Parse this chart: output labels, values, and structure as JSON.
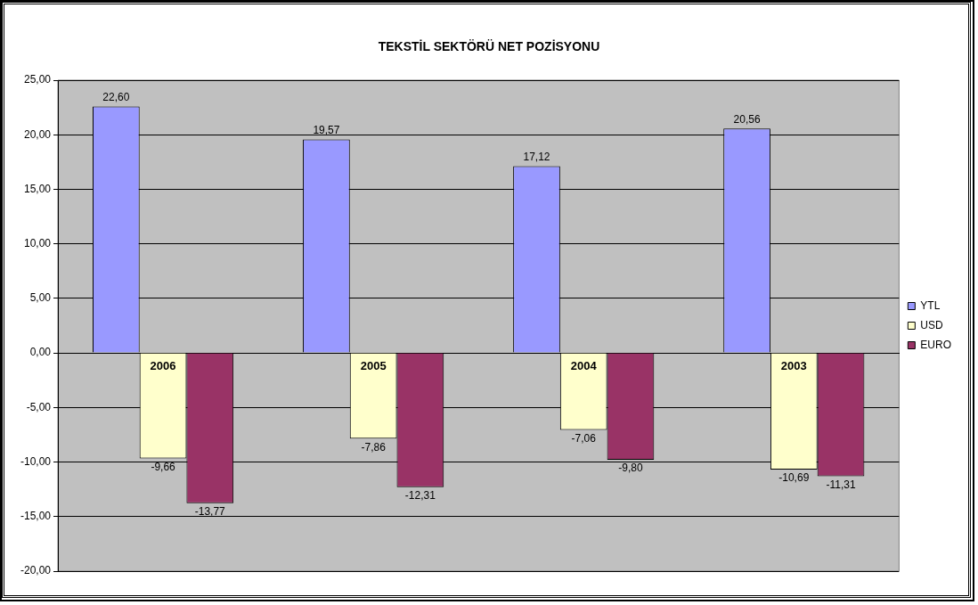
{
  "chart_data": {
    "type": "bar",
    "title": "TEKSTİL SEKTÖRÜ NET POZİSYONU",
    "categories": [
      "2006",
      "2005",
      "2004",
      "2003"
    ],
    "series": [
      {
        "name": "YTL",
        "color": "#9999ff",
        "values": [
          22.6,
          19.57,
          17.12,
          20.56
        ],
        "value_labels": [
          "22,60",
          "19,57",
          "17,12",
          "20,56"
        ]
      },
      {
        "name": "USD",
        "color": "#ffffcc",
        "values": [
          -9.66,
          -7.86,
          -7.06,
          -10.69
        ],
        "value_labels": [
          "-9,66",
          "-7,86",
          "-7,06",
          "-10,69"
        ]
      },
      {
        "name": "EURO",
        "color": "#993366",
        "values": [
          -13.77,
          -12.31,
          -9.8,
          -11.31
        ],
        "value_labels": [
          "-13,77",
          "-12,31",
          "-9,80",
          "-11,31"
        ]
      }
    ],
    "ylim": [
      -20,
      25
    ],
    "yticks": [
      {
        "value": -20,
        "label": "-20,00"
      },
      {
        "value": -15,
        "label": "-15,00"
      },
      {
        "value": -10,
        "label": "-10,00"
      },
      {
        "value": -5,
        "label": "-5,00"
      },
      {
        "value": 0,
        "label": "0,00"
      },
      {
        "value": 5,
        "label": "5,00"
      },
      {
        "value": 10,
        "label": "10,00"
      },
      {
        "value": 15,
        "label": "15,00"
      },
      {
        "value": 20,
        "label": "20,00"
      },
      {
        "value": 25,
        "label": "25,00"
      }
    ],
    "grid": "y",
    "legend": "right"
  }
}
